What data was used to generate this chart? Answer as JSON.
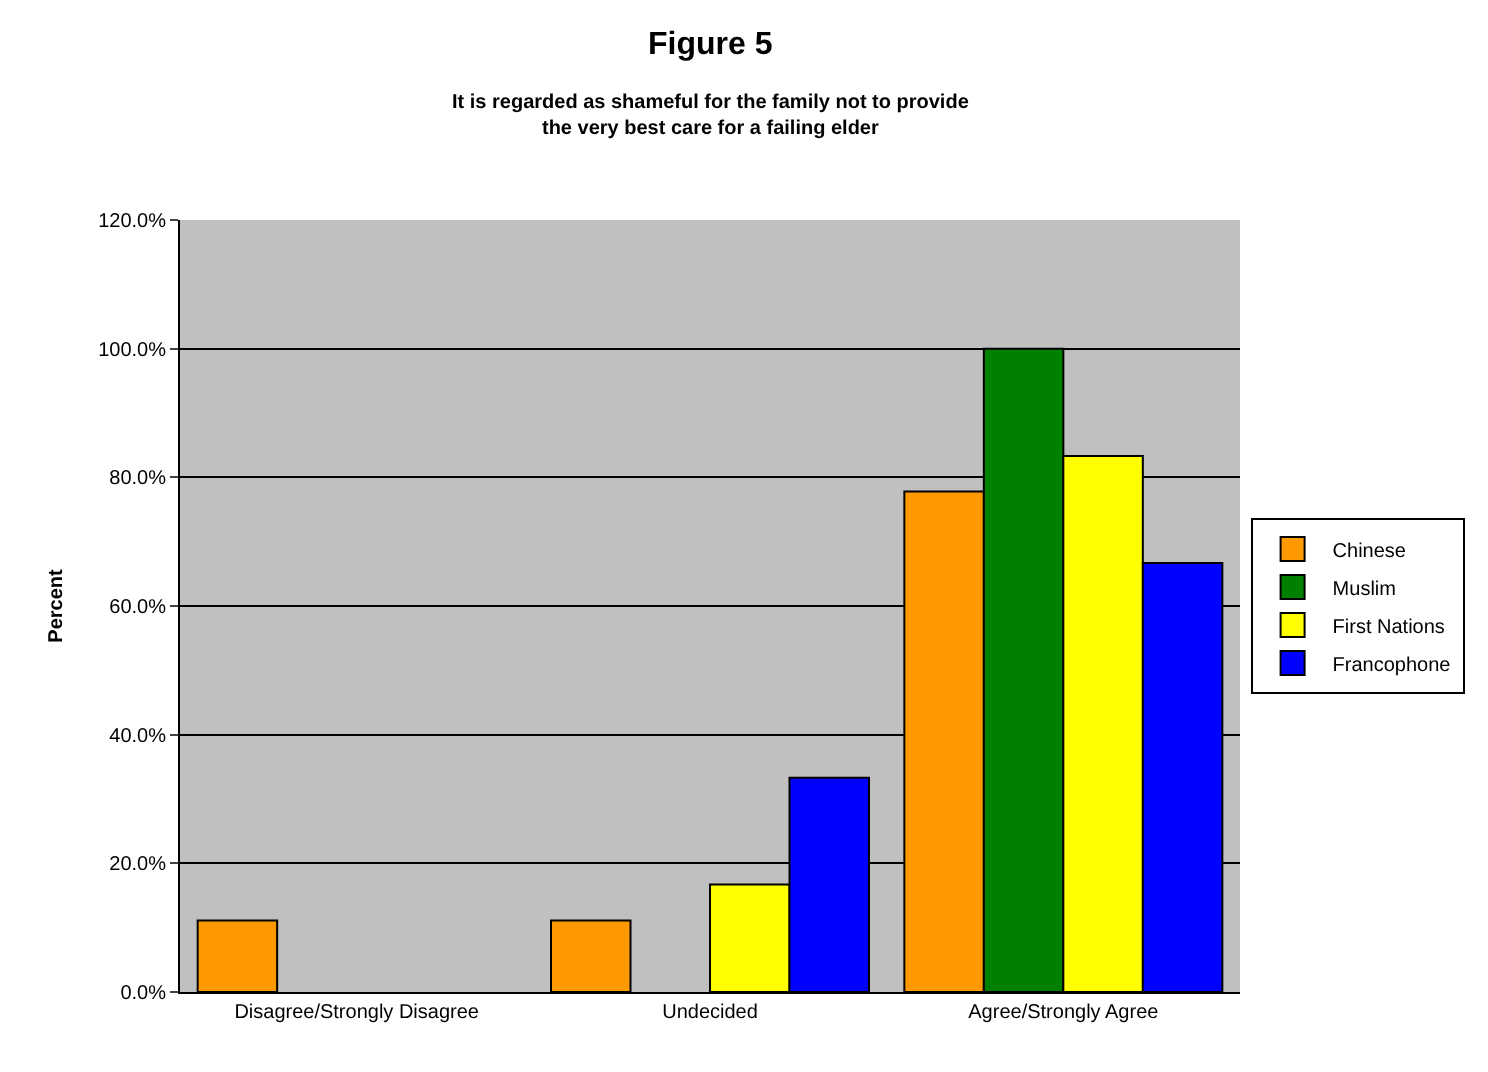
{
  "chart_data": {
    "type": "bar",
    "title": "Figure 5",
    "subtitle": "It is regarded as shameful for the family not to provide\nthe very best care for a failing elder",
    "ylabel": "Percent",
    "categories": [
      "Disagree/Strongly Disagree",
      "Undecided",
      "Agree/Strongly Agree"
    ],
    "series": [
      {
        "name": "Chinese",
        "color": "#ff9900",
        "values": [
          11.1,
          11.1,
          77.8
        ]
      },
      {
        "name": "Muslim",
        "color": "#008000",
        "values": [
          null,
          null,
          100
        ]
      },
      {
        "name": "First Nations",
        "color": "#ffff00",
        "values": [
          null,
          16.7,
          83.3
        ]
      },
      {
        "name": "Francophone",
        "color": "#0000ff",
        "values": [
          null,
          33.3,
          66.7
        ]
      }
    ],
    "ylim": [
      0,
      120
    ],
    "yticks": [
      {
        "value": 0,
        "label": "0.0%"
      },
      {
        "value": 20,
        "label": "20.0%"
      },
      {
        "value": 40,
        "label": "40.0%"
      },
      {
        "value": 60,
        "label": "60.0%"
      },
      {
        "value": 80,
        "label": "80.0%"
      },
      {
        "value": 100,
        "label": "100.0%"
      },
      {
        "value": 120,
        "label": "120.0%"
      }
    ],
    "grid": "y",
    "legend": "right"
  }
}
